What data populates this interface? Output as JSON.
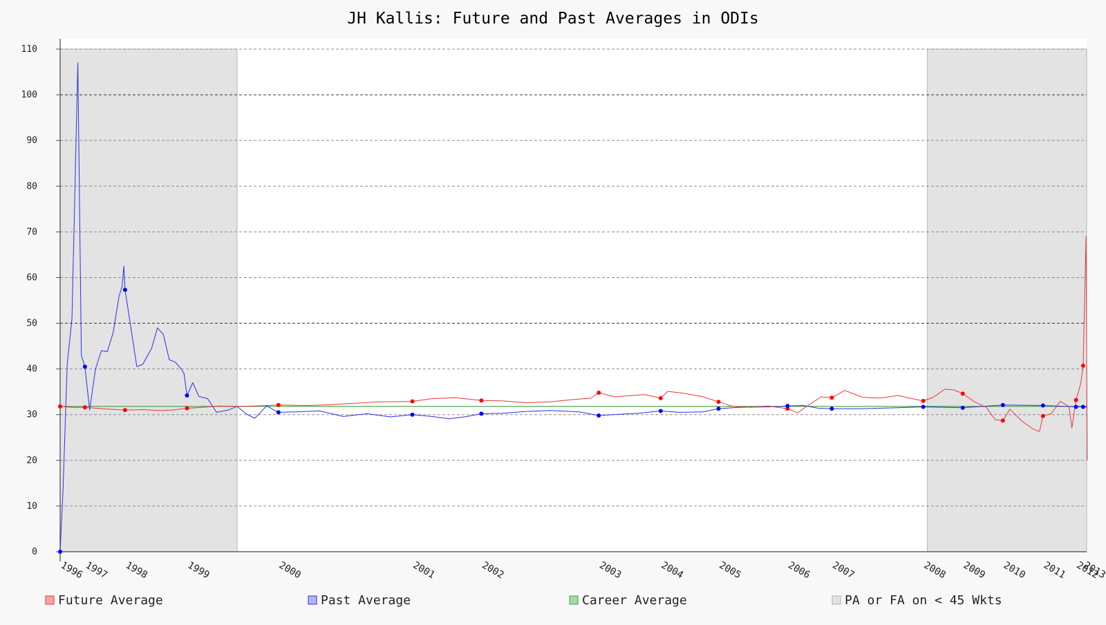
{
  "chart_data": {
    "type": "line",
    "title": "JH Kallis: Future and Past Averages in ODIs",
    "xlabel": "",
    "ylabel": "",
    "xlim": [
      1996.0,
      2013.4
    ],
    "ylim": [
      0,
      110
    ],
    "y_ticks": [
      0,
      10,
      20,
      30,
      40,
      50,
      60,
      70,
      80,
      90,
      100,
      110
    ],
    "x_ticks": [
      {
        "label": "1996",
        "x": 1996.0
      },
      {
        "label": "1997",
        "x": 1996.42
      },
      {
        "label": "1998",
        "x": 1997.1
      },
      {
        "label": "1999",
        "x": 1998.15
      },
      {
        "label": "2000",
        "x": 1999.7
      },
      {
        "label": "2001",
        "x": 2001.97
      },
      {
        "label": "2002",
        "x": 2003.14
      },
      {
        "label": "2003",
        "x": 2005.13
      },
      {
        "label": "2004",
        "x": 2006.18
      },
      {
        "label": "2005",
        "x": 2007.16
      },
      {
        "label": "2006",
        "x": 2008.33
      },
      {
        "label": "2007",
        "x": 2009.08
      },
      {
        "label": "2008",
        "x": 2010.63
      },
      {
        "label": "2009",
        "x": 2011.3
      },
      {
        "label": "2010",
        "x": 2011.98
      },
      {
        "label": "2011",
        "x": 2012.66
      },
      {
        "label": "2012",
        "x": 2013.22
      },
      {
        "label": "2013",
        "x": 2013.34
      }
    ],
    "grid": true,
    "dark_gridlines_at": [
      50,
      100
    ],
    "shaded_regions": [
      {
        "x0": 1996.0,
        "x1": 1999.0
      },
      {
        "x0": 2010.7,
        "x1": 2013.4
      }
    ],
    "series": [
      {
        "name": "Future Average",
        "color": "#e8363a",
        "points": [
          [
            1996.0,
            31.8
          ],
          [
            1996.2,
            31.6
          ],
          [
            1996.42,
            31.6
          ],
          [
            1996.7,
            31.3
          ],
          [
            1997.1,
            31.0
          ],
          [
            1997.4,
            31.1
          ],
          [
            1997.7,
            30.9
          ],
          [
            1997.9,
            31.0
          ],
          [
            1998.15,
            31.4
          ],
          [
            1998.4,
            31.6
          ],
          [
            1998.7,
            31.9
          ],
          [
            1999.0,
            31.8
          ],
          [
            1999.3,
            31.9
          ],
          [
            1999.7,
            32.1
          ],
          [
            2000.2,
            32.0
          ],
          [
            2000.6,
            32.2
          ],
          [
            2001.0,
            32.5
          ],
          [
            2001.4,
            32.8
          ],
          [
            2001.97,
            32.9
          ],
          [
            2002.3,
            33.5
          ],
          [
            2002.7,
            33.7
          ],
          [
            2003.14,
            33.1
          ],
          [
            2003.5,
            33.0
          ],
          [
            2003.9,
            32.6
          ],
          [
            2004.3,
            32.8
          ],
          [
            2004.7,
            33.3
          ],
          [
            2005.0,
            33.6
          ],
          [
            2005.13,
            34.8
          ],
          [
            2005.4,
            33.9
          ],
          [
            2005.7,
            34.2
          ],
          [
            2005.9,
            34.4
          ],
          [
            2006.18,
            33.6
          ],
          [
            2006.3,
            35.1
          ],
          [
            2006.6,
            34.6
          ],
          [
            2006.9,
            33.9
          ],
          [
            2007.16,
            32.8
          ],
          [
            2007.4,
            31.8
          ],
          [
            2007.7,
            31.6
          ],
          [
            2008.0,
            31.9
          ],
          [
            2008.33,
            31.3
          ],
          [
            2008.5,
            30.4
          ],
          [
            2008.7,
            32.2
          ],
          [
            2008.9,
            33.9
          ],
          [
            2009.08,
            33.7
          ],
          [
            2009.3,
            35.3
          ],
          [
            2009.6,
            33.8
          ],
          [
            2009.9,
            33.6
          ],
          [
            2010.2,
            34.2
          ],
          [
            2010.4,
            33.6
          ],
          [
            2010.63,
            33.0
          ],
          [
            2010.8,
            33.8
          ],
          [
            2011.0,
            35.6
          ],
          [
            2011.15,
            35.4
          ],
          [
            2011.3,
            34.6
          ],
          [
            2011.5,
            32.8
          ],
          [
            2011.7,
            31.6
          ],
          [
            2011.85,
            28.9
          ],
          [
            2011.98,
            28.7
          ],
          [
            2012.1,
            31.2
          ],
          [
            2012.3,
            28.6
          ],
          [
            2012.5,
            26.8
          ],
          [
            2012.6,
            26.3
          ],
          [
            2012.66,
            29.7
          ],
          [
            2012.8,
            30.2
          ],
          [
            2012.95,
            32.9
          ],
          [
            2013.1,
            31.8
          ],
          [
            2013.15,
            27.1
          ],
          [
            2013.22,
            33.2
          ],
          [
            2013.3,
            36.8
          ],
          [
            2013.34,
            40.7
          ],
          [
            2013.39,
            69.0
          ],
          [
            2013.41,
            20.0
          ]
        ],
        "markers": [
          [
            1996.0,
            31.8
          ],
          [
            1996.42,
            31.6
          ],
          [
            1997.1,
            31.0
          ],
          [
            1998.15,
            31.4
          ],
          [
            1999.7,
            32.1
          ],
          [
            2001.97,
            32.9
          ],
          [
            2003.14,
            33.1
          ],
          [
            2005.13,
            34.8
          ],
          [
            2006.18,
            33.6
          ],
          [
            2007.16,
            32.8
          ],
          [
            2008.33,
            31.3
          ],
          [
            2009.08,
            33.7
          ],
          [
            2010.63,
            33.0
          ],
          [
            2011.3,
            34.6
          ],
          [
            2011.98,
            28.7
          ],
          [
            2012.66,
            29.7
          ],
          [
            2013.22,
            33.2
          ],
          [
            2013.34,
            40.7
          ]
        ]
      },
      {
        "name": "Past Average",
        "color": "#2b2ee8",
        "points": [
          [
            1996.0,
            0.0
          ],
          [
            1996.05,
            14.0
          ],
          [
            1996.12,
            41.0
          ],
          [
            1996.2,
            51.0
          ],
          [
            1996.3,
            107.0
          ],
          [
            1996.36,
            43.0
          ],
          [
            1996.42,
            40.5
          ],
          [
            1996.5,
            31.0
          ],
          [
            1996.6,
            40.0
          ],
          [
            1996.7,
            44.0
          ],
          [
            1996.8,
            43.8
          ],
          [
            1996.9,
            48.0
          ],
          [
            1997.0,
            56.0
          ],
          [
            1997.05,
            58.0
          ],
          [
            1997.08,
            62.5
          ],
          [
            1997.1,
            57.3
          ],
          [
            1997.2,
            49.0
          ],
          [
            1997.3,
            40.5
          ],
          [
            1997.4,
            41.0
          ],
          [
            1997.55,
            44.5
          ],
          [
            1997.65,
            49.0
          ],
          [
            1997.75,
            47.5
          ],
          [
            1997.85,
            42.0
          ],
          [
            1997.95,
            41.5
          ],
          [
            1998.05,
            40.0
          ],
          [
            1998.1,
            39.0
          ],
          [
            1998.15,
            34.2
          ],
          [
            1998.25,
            37.0
          ],
          [
            1998.35,
            34.0
          ],
          [
            1998.5,
            33.5
          ],
          [
            1998.65,
            30.5
          ],
          [
            1998.85,
            31.0
          ],
          [
            1999.0,
            31.8
          ],
          [
            1999.15,
            30.2
          ],
          [
            1999.3,
            29.2
          ],
          [
            1999.5,
            31.9
          ],
          [
            1999.7,
            30.5
          ],
          [
            2000.0,
            30.6
          ],
          [
            2000.4,
            30.8
          ],
          [
            2000.8,
            29.6
          ],
          [
            2001.2,
            30.2
          ],
          [
            2001.6,
            29.5
          ],
          [
            2001.97,
            30.0
          ],
          [
            2002.3,
            29.6
          ],
          [
            2002.6,
            29.1
          ],
          [
            2002.9,
            29.6
          ],
          [
            2003.14,
            30.2
          ],
          [
            2003.5,
            30.3
          ],
          [
            2003.9,
            30.7
          ],
          [
            2004.3,
            30.9
          ],
          [
            2004.8,
            30.6
          ],
          [
            2005.13,
            29.8
          ],
          [
            2005.5,
            30.1
          ],
          [
            2005.8,
            30.3
          ],
          [
            2006.18,
            30.8
          ],
          [
            2006.5,
            30.5
          ],
          [
            2006.9,
            30.6
          ],
          [
            2007.16,
            31.3
          ],
          [
            2007.5,
            31.6
          ],
          [
            2008.0,
            31.7
          ],
          [
            2008.33,
            31.9
          ],
          [
            2008.6,
            32.0
          ],
          [
            2008.85,
            31.4
          ],
          [
            2009.08,
            31.3
          ],
          [
            2009.6,
            31.3
          ],
          [
            2010.2,
            31.5
          ],
          [
            2010.63,
            31.7
          ],
          [
            2011.3,
            31.5
          ],
          [
            2011.98,
            32.1
          ],
          [
            2012.66,
            32.0
          ],
          [
            2013.22,
            31.7
          ],
          [
            2013.34,
            31.7
          ],
          [
            2013.41,
            31.7
          ]
        ],
        "markers": [
          [
            1996.0,
            0.0
          ],
          [
            1996.42,
            40.5
          ],
          [
            1997.1,
            57.3
          ],
          [
            1998.15,
            34.2
          ],
          [
            1999.7,
            30.5
          ],
          [
            2001.97,
            30.0
          ],
          [
            2003.14,
            30.2
          ],
          [
            2005.13,
            29.8
          ],
          [
            2006.18,
            30.8
          ],
          [
            2007.16,
            31.3
          ],
          [
            2008.33,
            31.9
          ],
          [
            2009.08,
            31.3
          ],
          [
            2010.63,
            31.7
          ],
          [
            2011.3,
            31.5
          ],
          [
            2011.98,
            32.1
          ],
          [
            2012.66,
            32.0
          ],
          [
            2013.22,
            31.7
          ],
          [
            2013.34,
            31.7
          ]
        ]
      },
      {
        "name": "Career Average",
        "color": "#3aa33a",
        "points": [
          [
            1996.0,
            31.8
          ],
          [
            2013.41,
            31.8
          ]
        ],
        "markers": []
      }
    ],
    "legend": {
      "placement": "bottom",
      "entries": [
        {
          "label": "Future Average",
          "fill": "#f4a6a6",
          "stroke": "#e8363a"
        },
        {
          "label": "Past Average",
          "fill": "#b4b4f4",
          "stroke": "#2b2ee8"
        },
        {
          "label": "Career Average",
          "fill": "#a8d8a8",
          "stroke": "#3aa33a"
        },
        {
          "label": "PA or FA on < 45 Wkts",
          "fill": "#e3e3e3",
          "stroke": "#b0b0b0"
        }
      ]
    }
  }
}
